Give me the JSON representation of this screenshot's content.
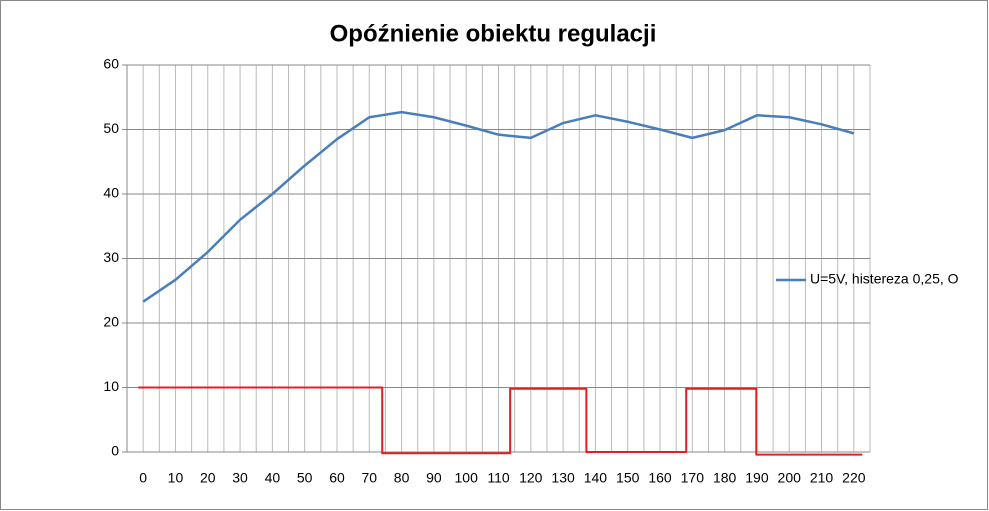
{
  "chart_data": {
    "type": "line",
    "title": "Opóźnienie obiektu regulacji",
    "categories": [
      "0",
      "10",
      "20",
      "30",
      "40",
      "50",
      "60",
      "70",
      "80",
      "90",
      "100",
      "110",
      "120",
      "130",
      "140",
      "150",
      "160",
      "170",
      "180",
      "190",
      "200",
      "210",
      "220"
    ],
    "series": [
      {
        "name": "U=5V, histereza 0,25, O",
        "color": "#4a7ebb",
        "values": [
          23.3,
          26.7,
          31,
          36,
          40,
          44.4,
          48.5,
          51.9,
          52.7,
          51.9,
          50.6,
          49.2,
          48.7,
          51,
          52.2,
          51.2,
          50,
          48.7,
          49.9,
          52.2,
          51.9,
          50.8,
          49.4
        ]
      },
      {
        "color": "#e02020",
        "x": [
          -1.5,
          74,
          74,
          113.6,
          113.6,
          137.2,
          137.2,
          168.1,
          168.1,
          189.8,
          189.8,
          222.6
        ],
        "values": [
          10,
          10,
          -0.2,
          -0.2,
          9.8,
          9.8,
          0,
          0,
          9.8,
          9.8,
          -0.4,
          -0.4
        ]
      }
    ],
    "ylim": [
      0,
      60
    ],
    "yticks": [
      0,
      10,
      20,
      30,
      40,
      50,
      60
    ],
    "grid": true,
    "legend": "right"
  }
}
